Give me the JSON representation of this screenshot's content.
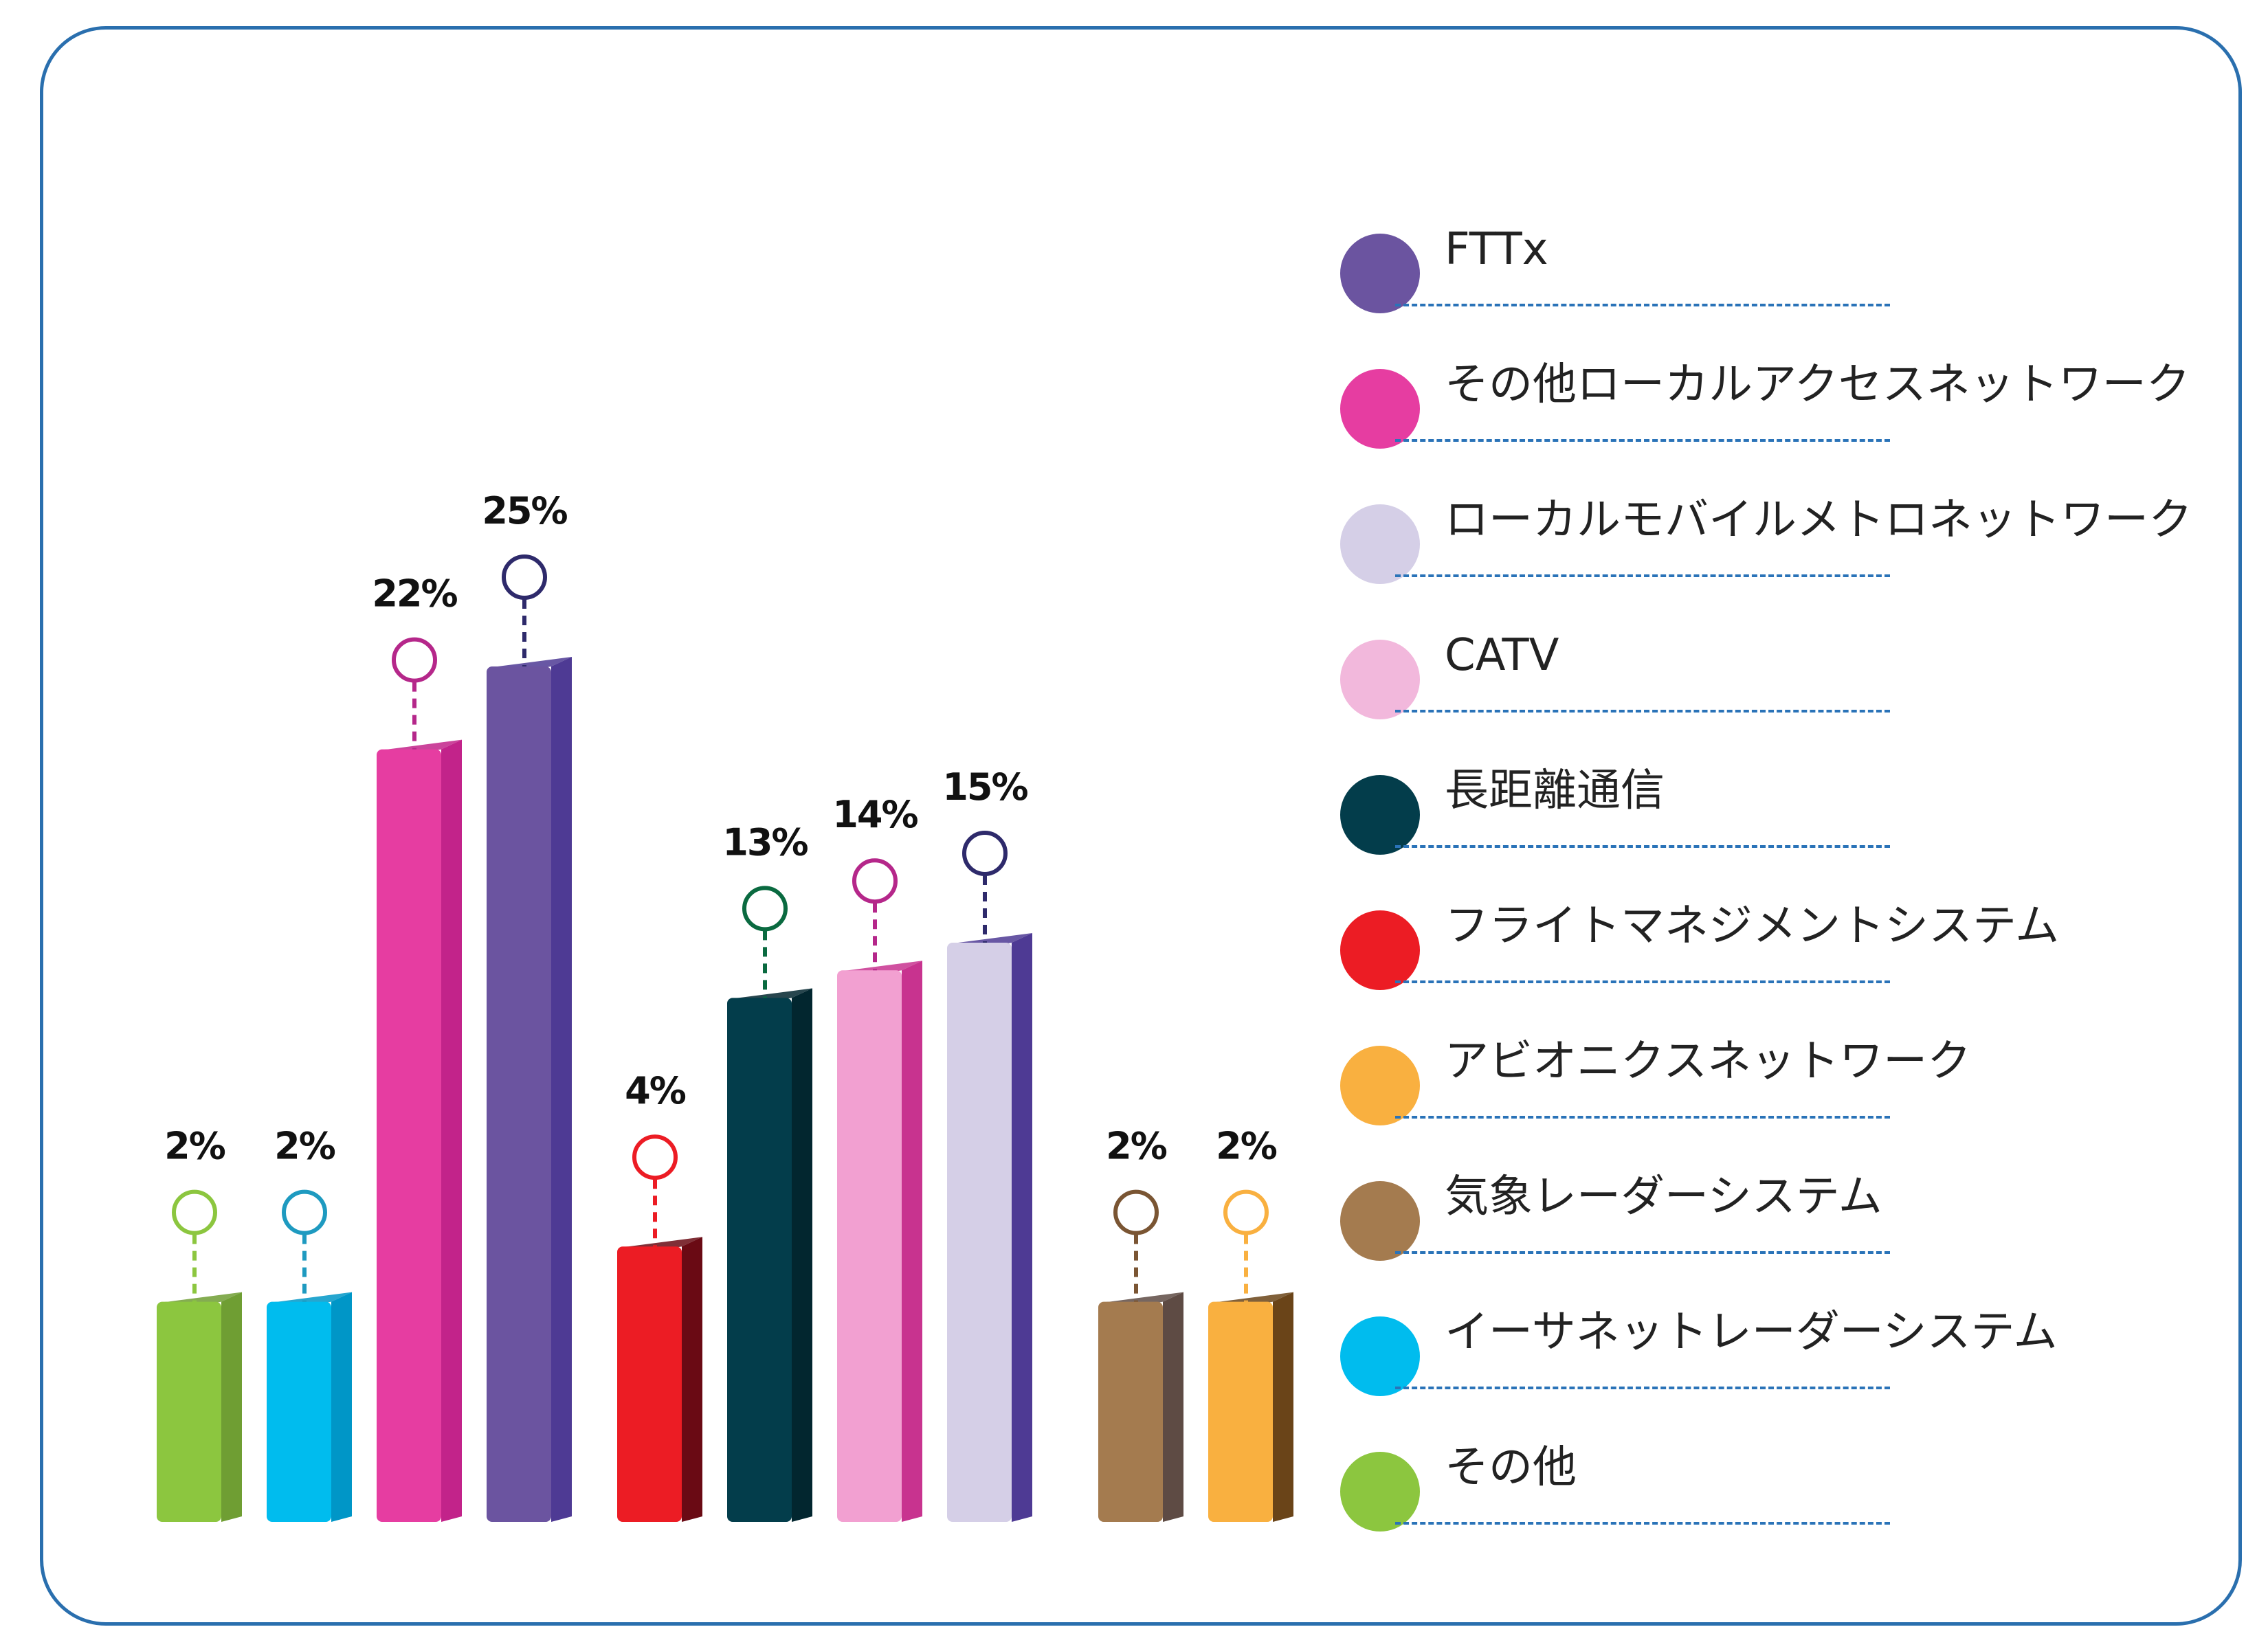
{
  "chart_data": {
    "type": "bar",
    "title": "",
    "xlabel": "",
    "ylabel": "",
    "ylim": [
      0,
      25
    ],
    "grid": false,
    "legend_position": "right",
    "categories": [
      "その他",
      "イーサネットレーダーシステム",
      "その他ローカルアクセスネットワーク",
      "FTTx",
      "フライトマネジメントシステム",
      "長距離通信",
      "CATV",
      "ローカルモバイルメトロネットワーク",
      "気象レーダーシステム",
      "アビオニクスネットワーク"
    ],
    "values": [
      2,
      2,
      22,
      25,
      4,
      13,
      14,
      15,
      2,
      2
    ],
    "labels": [
      "2%",
      "2%",
      "22%",
      "25%",
      "4%",
      "13%",
      "14%",
      "15%",
      "2%",
      "2%"
    ],
    "bar_colors": [
      "#8cc63f",
      "#00bcee",
      "#e63da1",
      "#6b54a0",
      "#ec1c24",
      "#033d4b",
      "#f2a0d1",
      "#d5cfe7",
      "#a47b4f",
      "#f9b040"
    ],
    "side_colors": [
      "#6f9e33",
      "#0096c7",
      "#c2238a",
      "#4e3a94",
      "#6a0a14",
      "#02262f",
      "#c8338f",
      "#4e3a94",
      "#5e4b44",
      "#6a4418"
    ],
    "marker_colors": [
      "#8cc63f",
      "#1e9ac0",
      "#b5278a",
      "#2e2a6b",
      "#ec1c24",
      "#0a6a40",
      "#b5278a",
      "#2e2a6b",
      "#7a5533",
      "#f9b040"
    ],
    "legend": [
      {
        "label": "FTTx",
        "color": "#6b54a0"
      },
      {
        "label": "その他ローカルアクセスネットワーク",
        "color": "#e63da1"
      },
      {
        "label": "ローカルモバイルメトロネットワーク",
        "color": "#d5cfe7"
      },
      {
        "label": "CATV",
        "color": "#f2b8dc"
      },
      {
        "label": "長距離通信",
        "color": "#033d4b"
      },
      {
        "label": "フライトマネジメントシステム",
        "color": "#ec1c24"
      },
      {
        "label": "アビオニクスネットワーク",
        "color": "#f9b040"
      },
      {
        "label": "気象レーダーシステム",
        "color": "#a47b4f"
      },
      {
        "label": "イーサネットレーダーシステム",
        "color": "#00bcee"
      },
      {
        "label": "その他",
        "color": "#8cc63f"
      }
    ]
  }
}
